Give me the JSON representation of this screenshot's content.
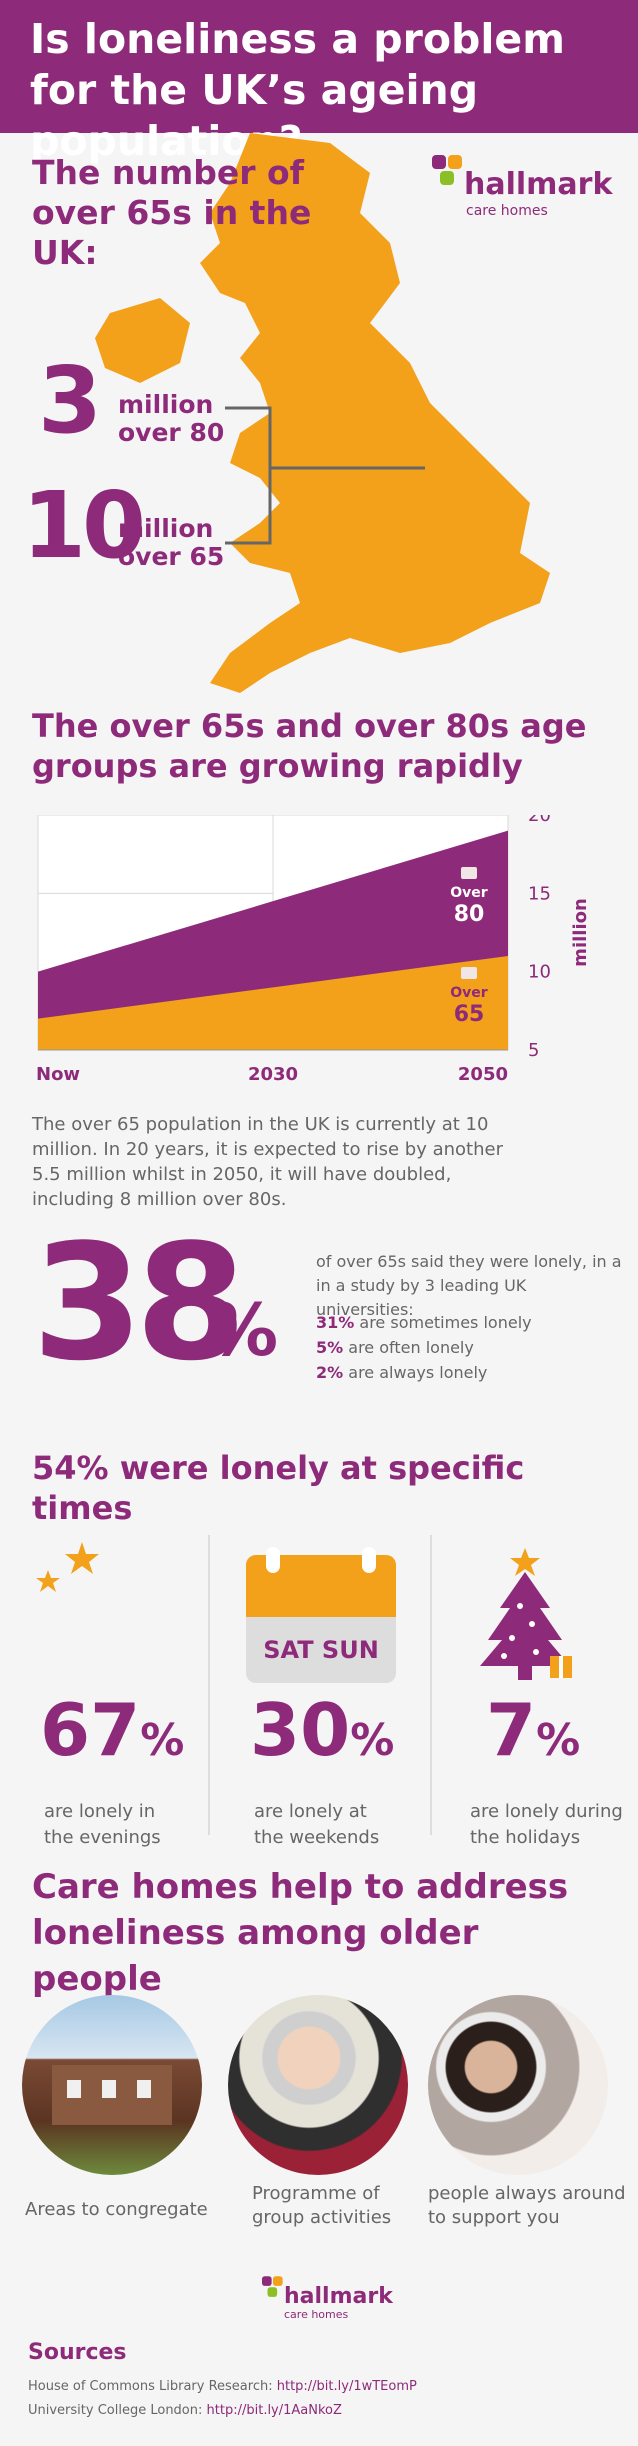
{
  "header": {
    "title": "Is loneliness a problem for the UK’s ageing population?"
  },
  "logo": {
    "name": "hallmark",
    "tagline": "care homes"
  },
  "population": {
    "title": "The number of over 65s in the UK:",
    "stats": [
      {
        "number": "3",
        "line1": "million",
        "line2": "over 80"
      },
      {
        "number": "10",
        "line1": "million",
        "line2": "over 65"
      }
    ]
  },
  "growth": {
    "title": "The over 65s and over 80s age groups are growing rapidly"
  },
  "chart_data": {
    "type": "area",
    "x": [
      "Now",
      "2030",
      "2050"
    ],
    "series": [
      {
        "name": "Over 65",
        "values": [
          7,
          9,
          11
        ]
      },
      {
        "name": "Over 80",
        "values": [
          10,
          14.5,
          19
        ]
      }
    ],
    "ylabel": "million",
    "yticks": [
      5,
      10,
      15,
      20
    ],
    "ylim": [
      5,
      20
    ],
    "series_labels": [
      {
        "top": "Over",
        "bottom": "65"
      },
      {
        "top": "Over",
        "bottom": "80"
      }
    ],
    "colors": {
      "over65": "#f3a01b",
      "over80": "#8e2a7a"
    },
    "grid": true
  },
  "growth_text": "The over 65 population in the UK is currently at 10 million. In 20 years, it is expected to rise by another 5.5 million whilst in 2050, it will have doubled, including 8 million over 80s.",
  "lonely": {
    "big_number": "38",
    "big_unit": "%",
    "intro": "of over 65s said they were lonely, in a in a study by 3 leading UK universities:",
    "breakdown": [
      {
        "pct": "31%",
        "text": "are sometimes lonely"
      },
      {
        "pct": "5%",
        "text": "are often lonely"
      },
      {
        "pct": "2%",
        "text": "are always lonely"
      }
    ]
  },
  "specific_times": {
    "title": "54% were lonely at specific times",
    "calendar_text": "SAT SUN",
    "items": [
      {
        "icon": "moon-stars-icon",
        "value": "67",
        "unit": "%",
        "line1": "are lonely in",
        "line2": "the evenings"
      },
      {
        "icon": "calendar-icon",
        "value": "30",
        "unit": "%",
        "line1": "are lonely at",
        "line2": "the weekends"
      },
      {
        "icon": "christmas-tree-icon",
        "value": "7",
        "unit": "%",
        "line1": "are lonely during",
        "line2": "the holidays"
      }
    ]
  },
  "care_homes": {
    "title": "Care homes help to address loneliness among older people",
    "items": [
      {
        "line1": "Areas to congregate",
        "line2": ""
      },
      {
        "line1": "Programme of",
        "line2": "group activities"
      },
      {
        "line1": "people always around",
        "line2": "to support you"
      }
    ]
  },
  "sources": {
    "title": "Sources",
    "items": [
      {
        "label": "House of Commons Library Research:",
        "link": "http://bit.ly/1wTEomP"
      },
      {
        "label": "University College London:",
        "link": "http://bit.ly/1AaNkoZ"
      }
    ]
  },
  "colors": {
    "purple": "#8e2a7a",
    "orange": "#f3a01b",
    "green": "#8cbf26",
    "background": "#f5f5f5"
  }
}
